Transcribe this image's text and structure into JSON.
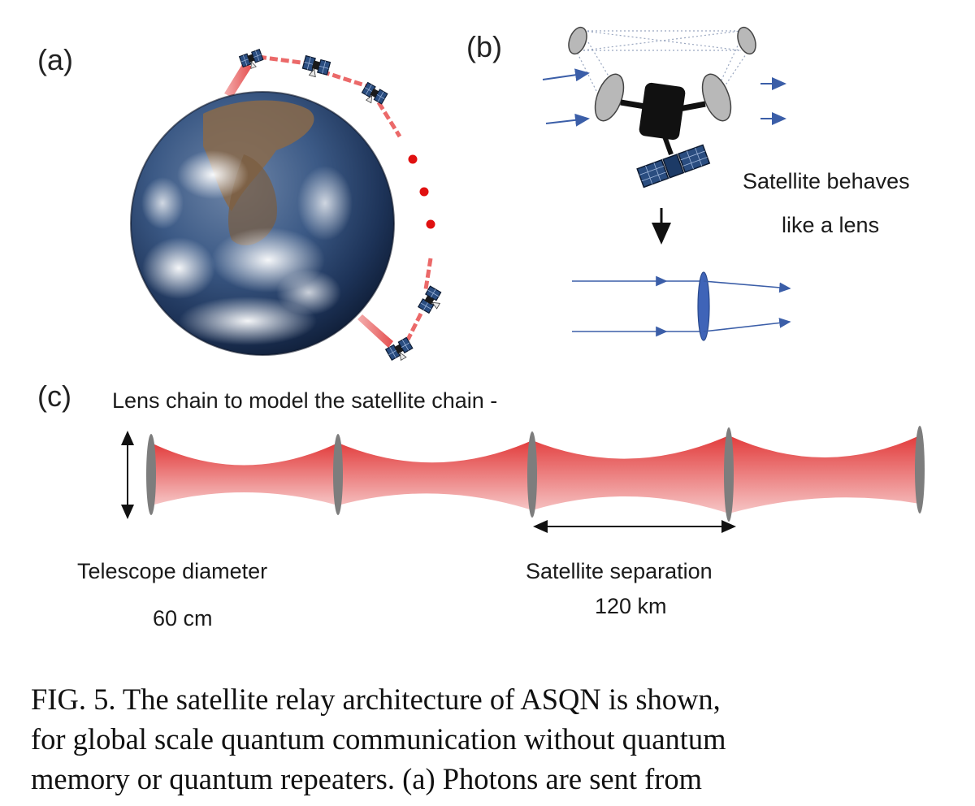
{
  "panels": {
    "a": {
      "label": "(a)"
    },
    "b": {
      "label": "(b)",
      "note_line1": "Satellite behaves",
      "note_line2": "like a lens"
    },
    "c": {
      "label": "(c)",
      "title": "Lens chain to model the satellite chain -",
      "diameter_label": "Telescope diameter",
      "diameter_value": "60 cm",
      "separation_label": "Satellite separation",
      "separation_value": "120 km",
      "lens_count": 5
    }
  },
  "colors": {
    "beam": "#e23b3b",
    "lens_gray": "#7d7d7d",
    "arrow_blue": "#3b5ea8",
    "satellite_body": "#111111",
    "solar_panel": "#2a4d80",
    "relay_dot": "#e01010"
  },
  "caption": {
    "line1": "FIG. 5.  The satellite relay architecture of ASQN is shown,",
    "line2": "for global scale quantum communication without quantum",
    "line3": "memory or quantum repeaters.  (a) Photons are sent from"
  }
}
